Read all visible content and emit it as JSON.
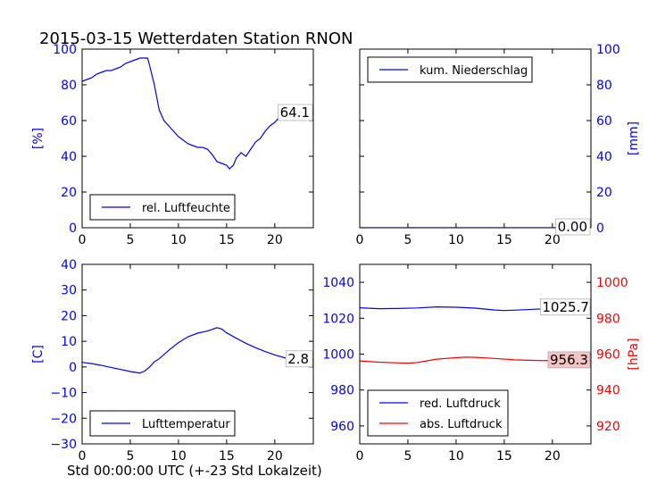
{
  "title": "2015-03-15 Wetterdaten Station RNON",
  "x_axis_label": "Std 00:00:00 UTC (+-23 Std Lokalzeit)",
  "colors": {
    "primary": "#0000ff",
    "secondary": "#ff0000",
    "value_box_pressure": "#f4c4c4"
  },
  "chart_data": [
    {
      "type": "line",
      "panel": "top-left",
      "ylabel": "[%]",
      "xlim": [
        0,
        24
      ],
      "ylim": [
        0,
        100
      ],
      "xticks": [
        0,
        5,
        10,
        15,
        20
      ],
      "yticks": [
        0,
        20,
        40,
        60,
        80,
        100
      ],
      "legend_position": "bottom-center",
      "current_value_label": "64.1",
      "series": [
        {
          "name": "rel. Luftfeuchte",
          "color": "#0000ff",
          "x": [
            0,
            0.5,
            1,
            1.5,
            2,
            2.5,
            3,
            3.5,
            4,
            4.5,
            5,
            5.5,
            6,
            6.5,
            6.8,
            7,
            7.5,
            8,
            8.5,
            9,
            9.5,
            10,
            10.5,
            11,
            11.5,
            12,
            12.5,
            13,
            13.5,
            14,
            14.5,
            15,
            15.3,
            15.7,
            16,
            16.5,
            17,
            17.5,
            18,
            18.5,
            19,
            19.5,
            20,
            20.5,
            21,
            21.5,
            22,
            22.5,
            23,
            23.5,
            24
          ],
          "y": [
            82,
            83,
            84,
            86,
            87,
            88,
            88,
            89,
            90,
            92,
            93,
            94,
            95,
            95,
            95,
            91,
            80,
            66,
            60,
            57,
            54,
            51,
            49,
            47,
            46,
            45,
            45,
            44,
            41,
            37,
            36,
            35,
            33,
            35,
            39,
            42,
            40,
            44,
            48,
            50,
            54,
            57,
            59,
            62,
            64,
            64,
            65,
            64,
            65,
            64,
            64
          ]
        }
      ]
    },
    {
      "type": "line",
      "panel": "top-right",
      "ylabel": "[mm]",
      "xlim": [
        0,
        24
      ],
      "ylim": [
        0,
        100
      ],
      "xticks": [
        0,
        5,
        10,
        15,
        20
      ],
      "yticks": [
        0,
        20,
        40,
        60,
        80,
        100
      ],
      "legend_position": "top-left",
      "current_value_label": "0.00",
      "series": [
        {
          "name": "kum. Niederschlag",
          "color": "#0000ff",
          "x": [
            0,
            24
          ],
          "y": [
            0,
            0
          ]
        }
      ]
    },
    {
      "type": "line",
      "panel": "bottom-left",
      "ylabel": "[C]",
      "xlim": [
        0,
        24
      ],
      "ylim": [
        -30,
        40
      ],
      "xticks": [
        0,
        5,
        10,
        15,
        20
      ],
      "yticks": [
        -30,
        -20,
        -10,
        0,
        10,
        20,
        30,
        40
      ],
      "legend_position": "bottom-center",
      "current_value_label": "2.8",
      "series": [
        {
          "name": "Lufttemperatur",
          "color": "#0000ff",
          "x": [
            0,
            1,
            2,
            3,
            4,
            5,
            5.5,
            6,
            6.5,
            7,
            7.5,
            8,
            9,
            10,
            11,
            12,
            13,
            14,
            14.5,
            15,
            16,
            17,
            18,
            19,
            20,
            21,
            22,
            23,
            24
          ],
          "y": [
            1.8,
            1.3,
            0.6,
            -0.2,
            -1.0,
            -1.8,
            -2.1,
            -2.4,
            -1.6,
            0,
            2.0,
            3.2,
            6.5,
            9.5,
            11.8,
            13.2,
            14.0,
            15.3,
            14.8,
            13.3,
            11.2,
            9.2,
            7.5,
            6.0,
            4.7,
            3.6,
            2.9,
            2.8,
            2.8
          ]
        }
      ]
    },
    {
      "type": "line",
      "panel": "bottom-right",
      "ylabel": "[hPa]",
      "xlim": [
        0,
        24
      ],
      "ylim_left": [
        950,
        1050
      ],
      "ylim_right": [
        910,
        1010
      ],
      "xticks": [
        0,
        5,
        10,
        15,
        20
      ],
      "yticks_left": [
        960,
        980,
        1000,
        1020,
        1040
      ],
      "yticks_right": [
        920,
        940,
        960,
        980,
        1000
      ],
      "legend_position": "bottom-left",
      "series": [
        {
          "name": "red. Luftdruck",
          "color": "#0000ff",
          "axis": "left",
          "current_value_label": "1025.7",
          "x": [
            0,
            2,
            4,
            6,
            8,
            10,
            12,
            14,
            15,
            16,
            18,
            20,
            22,
            24
          ],
          "y": [
            1025.8,
            1025.3,
            1025.4,
            1025.7,
            1026.3,
            1026.1,
            1025.6,
            1024.6,
            1024.3,
            1024.5,
            1025.0,
            1025.4,
            1025.6,
            1025.7
          ]
        },
        {
          "name": "abs. Luftdruck",
          "color": "#ff0000",
          "axis": "right",
          "current_value_label": "956.3",
          "x": [
            0,
            2,
            4,
            5,
            6,
            8,
            10,
            11,
            12,
            14,
            16,
            18,
            20,
            22,
            24
          ],
          "y": [
            956.2,
            955.5,
            955.1,
            955.0,
            955.3,
            957.2,
            958.0,
            958.3,
            958.2,
            957.6,
            956.8,
            956.5,
            956.3,
            956.3,
            956.3
          ]
        }
      ]
    }
  ]
}
